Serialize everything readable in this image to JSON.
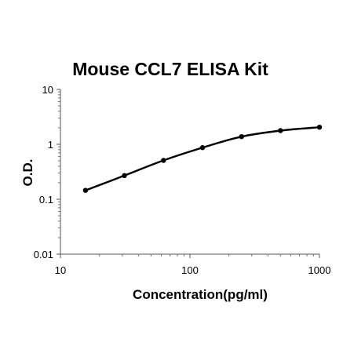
{
  "chart_data": {
    "type": "line",
    "title": "Mouse CCL7 ELISA Kit",
    "xlabel": "Concentration(pg/ml)",
    "ylabel": "O.D.",
    "x_scale": "log",
    "y_scale": "log",
    "xlim": [
      10,
      1000
    ],
    "ylim": [
      0.01,
      10
    ],
    "x_ticks": [
      "10",
      "100",
      "1000"
    ],
    "y_ticks": [
      "10",
      "1",
      "0.1",
      "0.01"
    ],
    "grid": false,
    "legend": "none",
    "series": [
      {
        "x": [
          15.6,
          31.2,
          62.5,
          125,
          250,
          500,
          1000
        ],
        "y": [
          0.145,
          0.27,
          0.51,
          0.87,
          1.38,
          1.78,
          2.05
        ]
      }
    ],
    "colors": {
      "line": "#000000",
      "marker": "#000000"
    }
  }
}
